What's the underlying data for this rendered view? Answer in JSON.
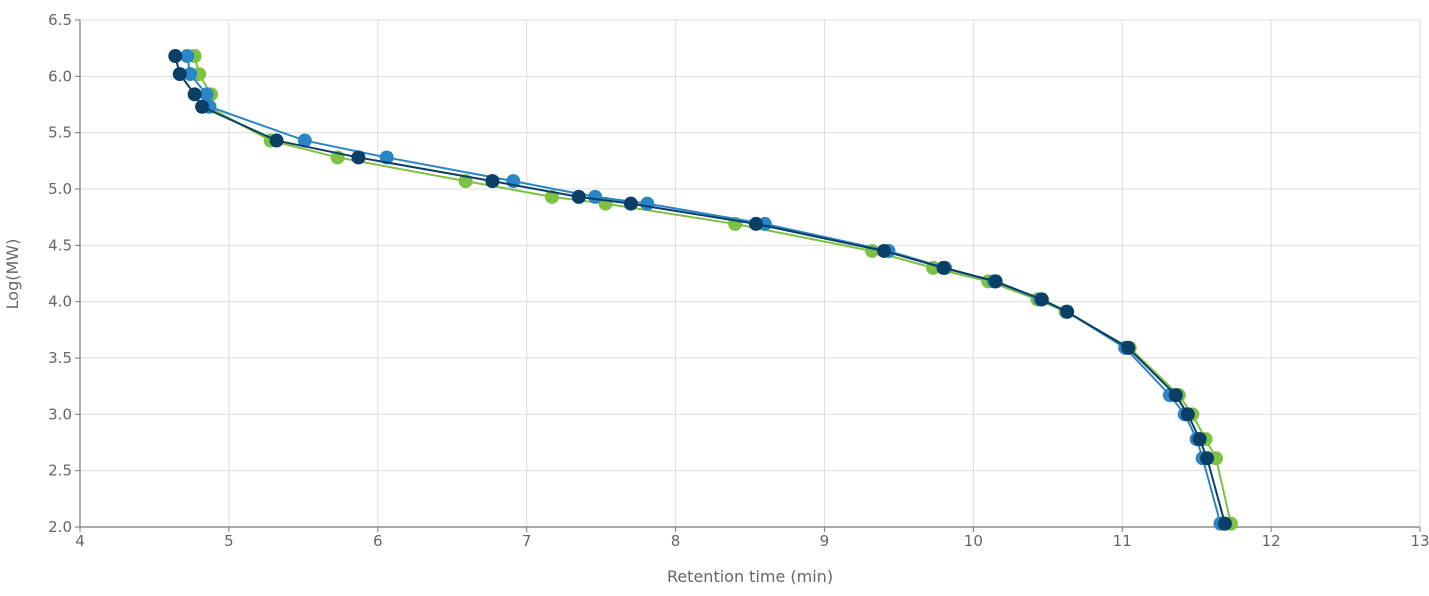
{
  "chart_data": {
    "type": "scatter",
    "title": "",
    "xlabel": "Retention time (min)",
    "ylabel": "Log(MW)",
    "xlim": [
      4,
      13
    ],
    "ylim": [
      2.0,
      6.5
    ],
    "xticks": [
      "4",
      "5",
      "6",
      "7",
      "8",
      "9",
      "10",
      "11",
      "12",
      "13"
    ],
    "yticks": [
      "2.0",
      "2.5",
      "3.0",
      "3.5",
      "4.0",
      "4.5",
      "5.0",
      "5.5",
      "6.0",
      "6.5"
    ],
    "grid": true,
    "mode": "lines+markers",
    "series": [
      {
        "color": "#7dc242",
        "points": [
          [
            4.77,
            6.18
          ],
          [
            4.8,
            6.02
          ],
          [
            4.88,
            5.84
          ],
          [
            4.86,
            5.73
          ],
          [
            5.28,
            5.43
          ],
          [
            5.73,
            5.28
          ],
          [
            6.59,
            5.07
          ],
          [
            7.17,
            4.93
          ],
          [
            7.53,
            4.87
          ],
          [
            8.4,
            4.69
          ],
          [
            9.32,
            4.45
          ],
          [
            9.73,
            4.3
          ],
          [
            10.1,
            4.18
          ],
          [
            10.43,
            4.02
          ],
          [
            10.62,
            3.91
          ],
          [
            11.05,
            3.59
          ],
          [
            11.38,
            3.17
          ],
          [
            11.47,
            3.0
          ],
          [
            11.56,
            2.78
          ],
          [
            11.63,
            2.61
          ],
          [
            11.73,
            2.03
          ]
        ]
      },
      {
        "color": "#2b86c8",
        "points": [
          [
            4.72,
            6.18
          ],
          [
            4.74,
            6.02
          ],
          [
            4.85,
            5.84
          ],
          [
            4.87,
            5.73
          ],
          [
            5.51,
            5.43
          ],
          [
            6.06,
            5.28
          ],
          [
            6.91,
            5.07
          ],
          [
            7.46,
            4.93
          ],
          [
            7.81,
            4.87
          ],
          [
            8.6,
            4.69
          ],
          [
            9.43,
            4.45
          ],
          [
            9.81,
            4.3
          ],
          [
            10.14,
            4.18
          ],
          [
            10.45,
            4.02
          ],
          [
            10.63,
            3.91
          ],
          [
            11.02,
            3.59
          ],
          [
            11.32,
            3.17
          ],
          [
            11.42,
            3.0
          ],
          [
            11.5,
            2.78
          ],
          [
            11.54,
            2.61
          ],
          [
            11.66,
            2.03
          ]
        ]
      },
      {
        "color": "#0b3f66",
        "points": [
          [
            4.64,
            6.18
          ],
          [
            4.67,
            6.02
          ],
          [
            4.77,
            5.84
          ],
          [
            4.82,
            5.73
          ],
          [
            5.32,
            5.43
          ],
          [
            5.87,
            5.28
          ],
          [
            6.77,
            5.07
          ],
          [
            7.35,
            4.93
          ],
          [
            7.7,
            4.87
          ],
          [
            8.54,
            4.69
          ],
          [
            9.4,
            4.45
          ],
          [
            9.8,
            4.3
          ],
          [
            10.15,
            4.18
          ],
          [
            10.46,
            4.02
          ],
          [
            10.63,
            3.91
          ],
          [
            11.04,
            3.59
          ],
          [
            11.36,
            3.17
          ],
          [
            11.44,
            3.0
          ],
          [
            11.52,
            2.78
          ],
          [
            11.57,
            2.61
          ],
          [
            11.69,
            2.03
          ]
        ]
      }
    ]
  }
}
